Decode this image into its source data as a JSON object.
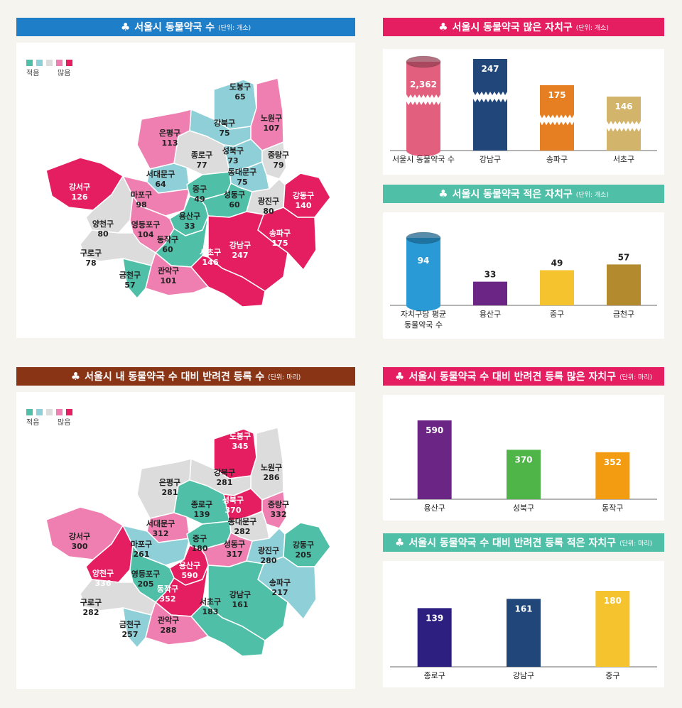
{
  "legend": {
    "low_label": "적음",
    "high_label": "많음"
  },
  "colors": {
    "map1_scale": [
      "#4fbfa8",
      "#8fd0d8",
      "#dcdcdc",
      "#ee7fb0",
      "#e41e60"
    ],
    "map2_scale": [
      "#4fbfa8",
      "#8fd0d8",
      "#dcdcdc",
      "#ee7fb0",
      "#e41e60"
    ],
    "h1": "#1e7ec8",
    "h2": "#e41e60",
    "h3": "#4fbfa8",
    "h4": "#8a3416",
    "h5": "#e41e60",
    "h6": "#4fbfa8"
  },
  "headers": {
    "h1": {
      "title": "서울시 동물약국 수",
      "unit": "(단위: 개소)",
      "icon": "club-icon"
    },
    "h2": {
      "title": "서울시 동물약국 많은 자치구",
      "unit": "(단위: 개소)",
      "icon": "club-icon"
    },
    "h3": {
      "title": "서울시 동물약국 적은 자치구",
      "unit": "(단위: 개소)",
      "icon": "club-icon"
    },
    "h4": {
      "title": "서울시 내 동물약국 수 대비 반려견 등록 수",
      "unit": "(단위: 마리)",
      "icon": "club-icon"
    },
    "h5": {
      "title": "서울시 동물약국 수 대비 반려견 등록 많은 자치구",
      "unit": "(단위: 마리)",
      "icon": "club-icon"
    },
    "h6": {
      "title": "서울시 동물약국 수 대비 반려견 등록 적은 자치구",
      "unit": "(단위: 마리)",
      "icon": "club-icon"
    }
  },
  "chart_data": [
    {
      "type": "map",
      "title": "서울시 동물약국 수",
      "regions": [
        {
          "name": "도봉구",
          "value": 65,
          "level": 1
        },
        {
          "name": "노원구",
          "value": 107,
          "level": 3
        },
        {
          "name": "강북구",
          "value": 75,
          "level": 1
        },
        {
          "name": "은평구",
          "value": 113,
          "level": 3
        },
        {
          "name": "종로구",
          "value": 77,
          "level": 2
        },
        {
          "name": "성북구",
          "value": 73,
          "level": 1
        },
        {
          "name": "중랑구",
          "value": 79,
          "level": 2
        },
        {
          "name": "서대문구",
          "value": 64,
          "level": 1
        },
        {
          "name": "동대문구",
          "value": 75,
          "level": 1
        },
        {
          "name": "강서구",
          "value": 126,
          "level": 4
        },
        {
          "name": "마포구",
          "value": 98,
          "level": 3
        },
        {
          "name": "중구",
          "value": 49,
          "level": 0
        },
        {
          "name": "성동구",
          "value": 60,
          "level": 0
        },
        {
          "name": "광진구",
          "value": 80,
          "level": 2
        },
        {
          "name": "강동구",
          "value": 140,
          "level": 4
        },
        {
          "name": "용산구",
          "value": 33,
          "level": 0
        },
        {
          "name": "양천구",
          "value": 80,
          "level": 2
        },
        {
          "name": "영등포구",
          "value": 104,
          "level": 3
        },
        {
          "name": "송파구",
          "value": 175,
          "level": 4
        },
        {
          "name": "동작구",
          "value": 60,
          "level": 0
        },
        {
          "name": "강남구",
          "value": 247,
          "level": 4
        },
        {
          "name": "구로구",
          "value": 78,
          "level": 2
        },
        {
          "name": "서초구",
          "value": 146,
          "level": 4
        },
        {
          "name": "금천구",
          "value": 57,
          "level": 0
        },
        {
          "name": "관악구",
          "value": 101,
          "level": 3
        }
      ]
    },
    {
      "type": "bar",
      "title": "서울시 동물약국 많은 자치구",
      "categories": [
        "서울시 동물약국 수",
        "강남구",
        "송파구",
        "서초구"
      ],
      "values": [
        2362,
        247,
        175,
        146
      ],
      "labels": [
        "2,362",
        "247",
        "175",
        "146"
      ],
      "colors": [
        "#e2607e",
        "#21477a",
        "#e67e22",
        "#d2b46a"
      ],
      "broken_axis": true
    },
    {
      "type": "bar",
      "title": "서울시 동물약국 적은 자치구",
      "categories": [
        "자치구당 평균",
        "용산구",
        "중구",
        "금천구"
      ],
      "category_line2": [
        "동물약국 수",
        "",
        "",
        ""
      ],
      "values": [
        94,
        33,
        49,
        57
      ],
      "colors": [
        "#2a9ad6",
        "#6a2585",
        "#f5c32e",
        "#b38a2e"
      ]
    },
    {
      "type": "map",
      "title": "서울시 내 동물약국 수 대비 반려견 등록 수",
      "regions": [
        {
          "name": "도봉구",
          "value": 345,
          "level": 4
        },
        {
          "name": "노원구",
          "value": 286,
          "level": 2
        },
        {
          "name": "강북구",
          "value": 281,
          "level": 2
        },
        {
          "name": "은평구",
          "value": 281,
          "level": 2
        },
        {
          "name": "종로구",
          "value": 139,
          "level": 0
        },
        {
          "name": "성북구",
          "value": 370,
          "level": 4
        },
        {
          "name": "중랑구",
          "value": 332,
          "level": 3
        },
        {
          "name": "서대문구",
          "value": 312,
          "level": 3
        },
        {
          "name": "동대문구",
          "value": 282,
          "level": 2
        },
        {
          "name": "강서구",
          "value": 300,
          "level": 3
        },
        {
          "name": "마포구",
          "value": 261,
          "level": 1
        },
        {
          "name": "중구",
          "value": 180,
          "level": 0
        },
        {
          "name": "성동구",
          "value": 317,
          "level": 3
        },
        {
          "name": "광진구",
          "value": 280,
          "level": 1
        },
        {
          "name": "강동구",
          "value": 205,
          "level": 0
        },
        {
          "name": "용산구",
          "value": 590,
          "level": 4
        },
        {
          "name": "양천구",
          "value": 336,
          "level": 4
        },
        {
          "name": "영등포구",
          "value": 205,
          "level": 0
        },
        {
          "name": "송파구",
          "value": 217,
          "level": 1
        },
        {
          "name": "동작구",
          "value": 352,
          "level": 4
        },
        {
          "name": "강남구",
          "value": 161,
          "level": 0
        },
        {
          "name": "구로구",
          "value": 282,
          "level": 2
        },
        {
          "name": "서초구",
          "value": 183,
          "level": 0
        },
        {
          "name": "금천구",
          "value": 257,
          "level": 1
        },
        {
          "name": "관악구",
          "value": 288,
          "level": 3
        }
      ]
    },
    {
      "type": "bar",
      "title": "서울시 동물약국 수 대비 반려견 등록 많은 자치구",
      "categories": [
        "용산구",
        "성북구",
        "동작구"
      ],
      "values": [
        590,
        370,
        352
      ],
      "colors": [
        "#6a2585",
        "#4fb548",
        "#f39c12"
      ]
    },
    {
      "type": "bar",
      "title": "서울시 동물약국 수 대비 반려견 등록 적은 자치구",
      "categories": [
        "종로구",
        "강남구",
        "중구"
      ],
      "values": [
        139,
        161,
        180
      ],
      "colors": [
        "#2c1f80",
        "#21477a",
        "#f5c32e"
      ]
    }
  ]
}
